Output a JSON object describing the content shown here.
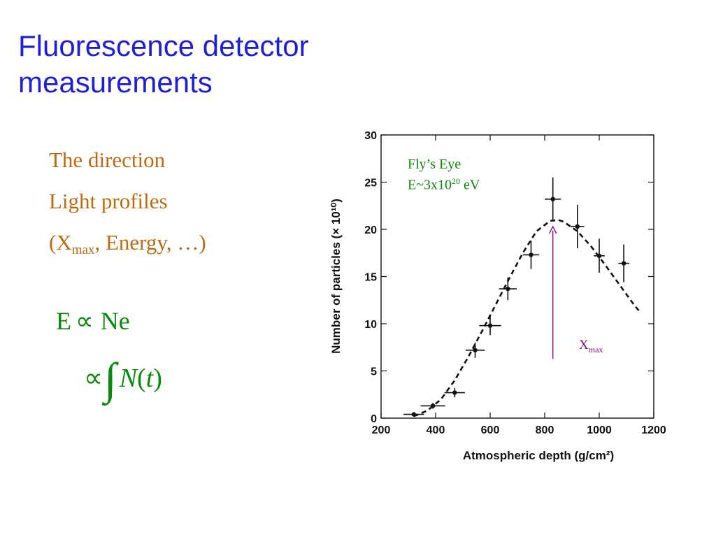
{
  "slide": {
    "title_line1": "Fluorescence detector",
    "title_line2": "measurements",
    "bullets": {
      "item1": "The direction",
      "item2": "Light profiles",
      "item3_pre": "(X",
      "item3_sub": "max",
      "item3_post": ", Energy, …)"
    },
    "formula1": {
      "lhs": "E",
      "symbol": "∝",
      "rhs": "Ne"
    },
    "formula2": {
      "symbol": "∝",
      "integral": "∫",
      "func": "N",
      "open": "(",
      "var": "t",
      "close": ")"
    }
  },
  "annotations": {
    "flys_eye": "Fly’s Eye",
    "energy_pre": "E~3x10",
    "energy_exp": "20",
    "energy_unit": " eV",
    "xmax_main": "X",
    "xmax_sub": "max"
  },
  "colors": {
    "title": "#1f1fd6",
    "bullets": "#c06a10",
    "formula": "#0a8a0a",
    "xmax_arrow": "#8a0a8a"
  },
  "chart_data": {
    "type": "scatter",
    "xlabel": "Atmospheric depth (g/cm²)",
    "ylabel": "Number of particles (× 10¹⁰)",
    "xlim": [
      200,
      1200
    ],
    "ylim": [
      0,
      30
    ],
    "xticks": [
      200,
      400,
      600,
      800,
      1000,
      1200
    ],
    "yticks": [
      0,
      5,
      10,
      15,
      20,
      25,
      30
    ],
    "points": [
      {
        "x": 320,
        "y": 0.4,
        "xerr": 75,
        "yerr": 0.2
      },
      {
        "x": 390,
        "y": 1.3,
        "xerr": 90,
        "yerr": 0.3
      },
      {
        "x": 470,
        "y": 2.7,
        "xerr": 75,
        "yerr": 0.5
      },
      {
        "x": 545,
        "y": 7.2,
        "xerr": 70,
        "yerr": 0.8
      },
      {
        "x": 600,
        "y": 9.8,
        "xerr": 80,
        "yerr": 1.0
      },
      {
        "x": 665,
        "y": 13.7,
        "xerr": 65,
        "yerr": 1.2
      },
      {
        "x": 750,
        "y": 17.3,
        "xerr": 60,
        "yerr": 1.5
      },
      {
        "x": 830,
        "y": 23.2,
        "xerr": 60,
        "yerr": 2.3
      },
      {
        "x": 920,
        "y": 20.3,
        "xerr": 50,
        "yerr": 2.3
      },
      {
        "x": 1000,
        "y": 17.2,
        "xerr": 40,
        "yerr": 1.8
      },
      {
        "x": 1090,
        "y": 16.4,
        "xerr": 40,
        "yerr": 2.0
      }
    ],
    "fit_curve": {
      "x": [
        320,
        370,
        420,
        470,
        520,
        570,
        620,
        670,
        720,
        770,
        820,
        850,
        870,
        920,
        970,
        1020,
        1070,
        1120,
        1150
      ],
      "y": [
        0.2,
        0.8,
        2.0,
        4.0,
        6.5,
        9.2,
        12.0,
        14.8,
        17.5,
        19.8,
        20.9,
        21.0,
        20.8,
        19.8,
        18.2,
        16.3,
        14.3,
        12.3,
        11.2
      ]
    },
    "xmax_marker": {
      "x": 830,
      "y_from": 6.3,
      "y_to": 20.3
    }
  }
}
